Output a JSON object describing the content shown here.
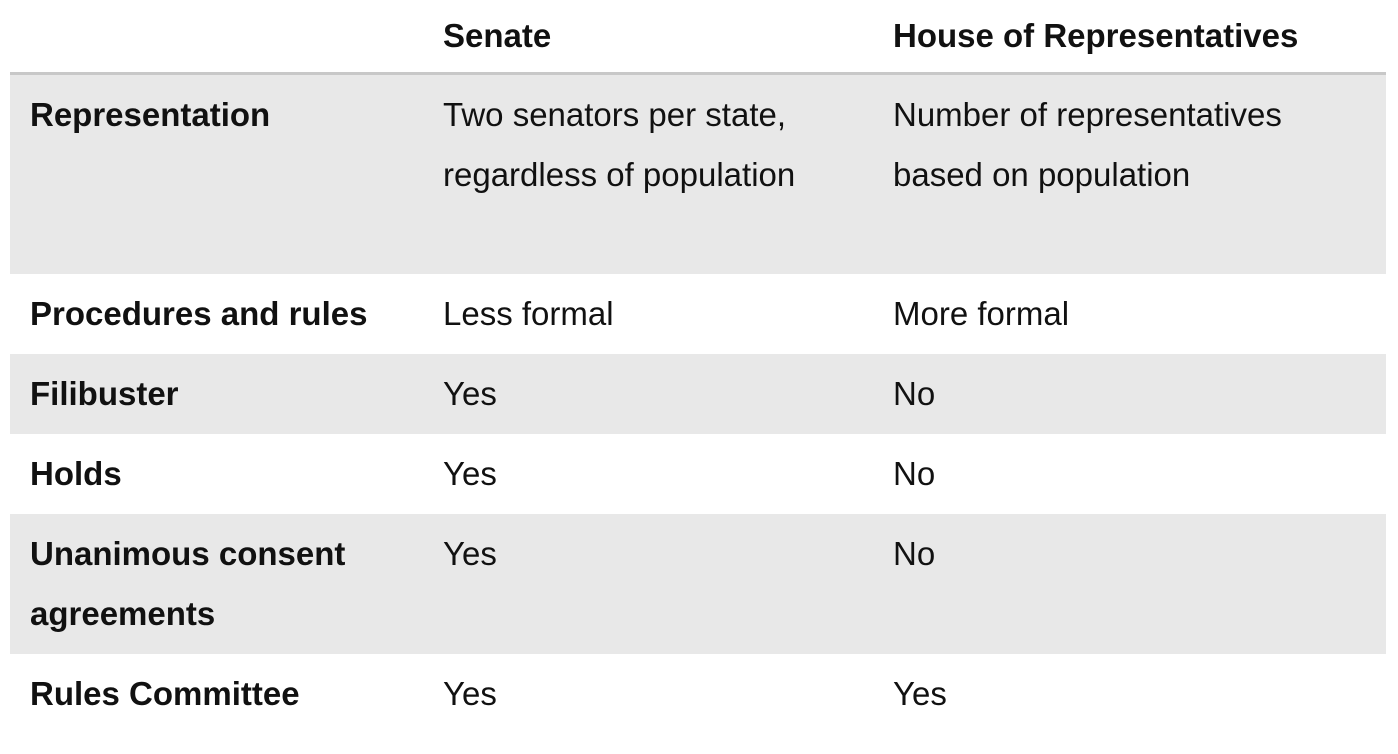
{
  "table": {
    "columns": [
      "Senate",
      "House of Representatives"
    ],
    "rows": [
      [
        "Representation",
        "Two senators per state, regardless of population",
        "Number of representatives based on population"
      ],
      [
        "Procedures and rules",
        "Less formal",
        "More formal"
      ],
      [
        "Filibuster",
        "Yes",
        "No"
      ],
      [
        "Holds",
        "Yes",
        "No"
      ],
      [
        "Unanimous consent agreements",
        "Yes",
        "No"
      ],
      [
        "Rules Committee",
        "Yes",
        "Yes"
      ]
    ]
  }
}
